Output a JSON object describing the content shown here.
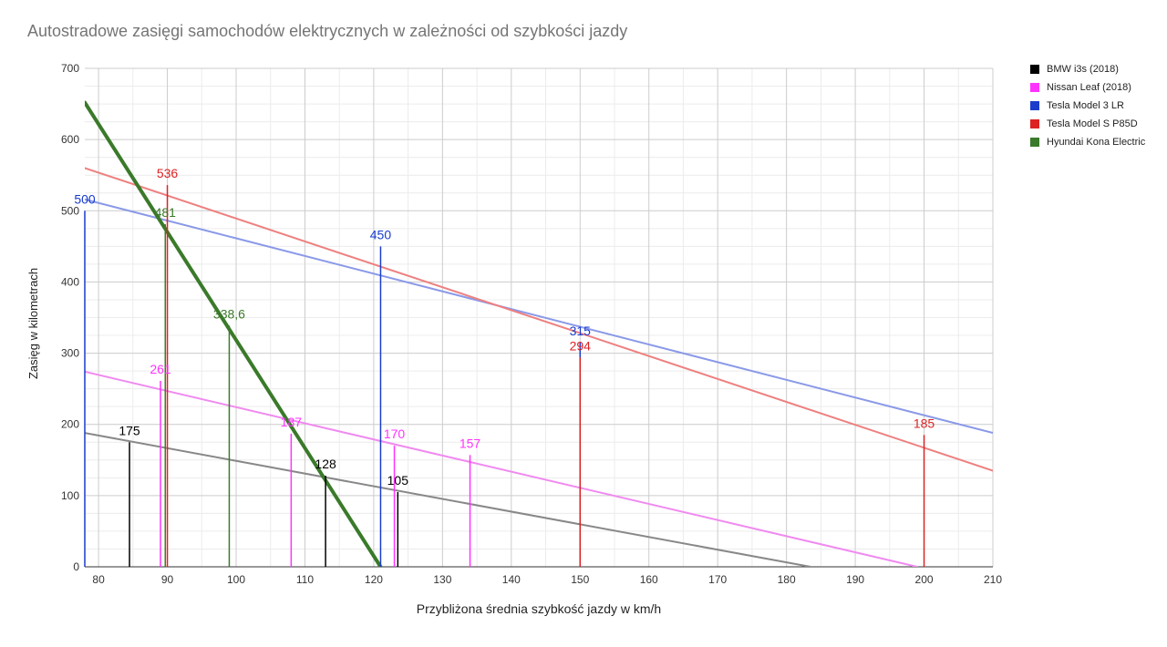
{
  "chart_data": {
    "type": "line",
    "title": "Autostradowe zasięgi samochodów elektrycznych w zależności od szybkości jazdy",
    "xlabel": "Przybliżona średnia szybkość jazdy w km/h",
    "ylabel": "Zasięg w kilometrach",
    "xlim": [
      78,
      210
    ],
    "ylim": [
      0,
      700
    ],
    "x_ticks": [
      80,
      90,
      100,
      110,
      120,
      130,
      140,
      150,
      160,
      170,
      180,
      190,
      200,
      210
    ],
    "y_ticks": [
      0,
      100,
      200,
      300,
      400,
      500,
      600,
      700
    ],
    "x_tick_labels": [
      "80",
      "90",
      "100",
      "110",
      "120",
      "130",
      "140",
      "150",
      "160",
      "170",
      "180",
      "190",
      "200",
      "210"
    ],
    "y_tick_labels": [
      "0",
      "100",
      "200",
      "300",
      "400",
      "500",
      "600",
      "700"
    ],
    "grid": true,
    "legend_position": "right",
    "series": [
      {
        "name": "BMW i3s (2018)",
        "color": "#000000",
        "trend_color": "#888888",
        "points": [
          {
            "x": 84.5,
            "y": 175,
            "label": "175"
          },
          {
            "x": 113,
            "y": 128,
            "label": "128"
          },
          {
            "x": 123.5,
            "y": 105,
            "label": "105"
          }
        ],
        "trendline": [
          [
            78,
            188
          ],
          [
            183.5,
            0
          ]
        ]
      },
      {
        "name": "Nissan Leaf (2018)",
        "color": "#ff33ff",
        "trend_color": "#f08af0",
        "points": [
          {
            "x": 89,
            "y": 261,
            "label": "261"
          },
          {
            "x": 108,
            "y": 187,
            "label": "187"
          },
          {
            "x": 123,
            "y": 170,
            "label": "170"
          },
          {
            "x": 134,
            "y": 157,
            "label": "157"
          }
        ],
        "trendline": [
          [
            78,
            274
          ],
          [
            199,
            0
          ]
        ]
      },
      {
        "name": "Tesla Model 3 LR",
        "color": "#1a3dcc",
        "trend_color": "#8a99e8",
        "points": [
          {
            "x": 78,
            "y": 500,
            "label": "500"
          },
          {
            "x": 121,
            "y": 450,
            "label": "450"
          },
          {
            "x": 150,
            "y": 315,
            "label": "315"
          }
        ],
        "trendline": [
          [
            78,
            516
          ],
          [
            210,
            188
          ]
        ]
      },
      {
        "name": "Tesla Model S P85D",
        "color": "#dd2222",
        "trend_color": "#ee8080",
        "points": [
          {
            "x": 90,
            "y": 536,
            "label": "536"
          },
          {
            "x": 150,
            "y": 294,
            "label": "294"
          },
          {
            "x": 200,
            "y": 185,
            "label": "185"
          }
        ],
        "trendline": [
          [
            78,
            560
          ],
          [
            210,
            135
          ]
        ]
      },
      {
        "name": "Hyundai Kona Electric",
        "color": "#3a7a2a",
        "trend_color": "#3a7a2a",
        "points": [
          {
            "x": 89.7,
            "y": 481,
            "label": "481"
          },
          {
            "x": 99,
            "y": 338.6,
            "label": "338,6"
          }
        ],
        "trendline": [
          [
            78,
            652
          ],
          [
            121,
            0
          ]
        ]
      }
    ]
  }
}
